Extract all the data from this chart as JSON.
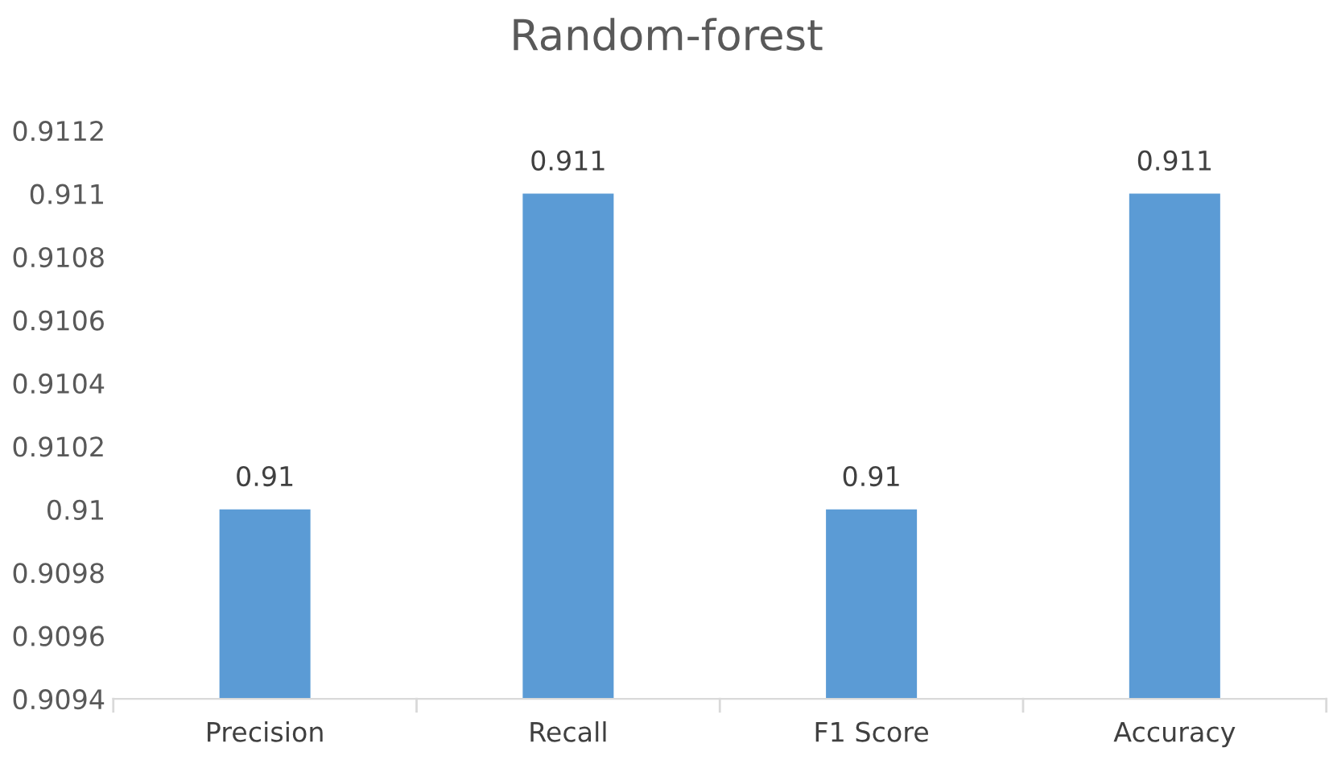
{
  "chart_data": {
    "type": "bar",
    "title": "Random-forest",
    "categories": [
      "Precision",
      "Recall",
      "F1 Score",
      "Accuracy"
    ],
    "values": [
      0.91,
      0.911,
      0.91,
      0.911
    ],
    "color": "#5b9bd5",
    "ylim": [
      0.9094,
      0.9112
    ],
    "yticks": [
      0.9094,
      0.9096,
      0.9098,
      0.91,
      0.9102,
      0.9104,
      0.9106,
      0.9108,
      0.911,
      0.9112
    ],
    "data_labels": true,
    "grid": false,
    "legend": false
  }
}
